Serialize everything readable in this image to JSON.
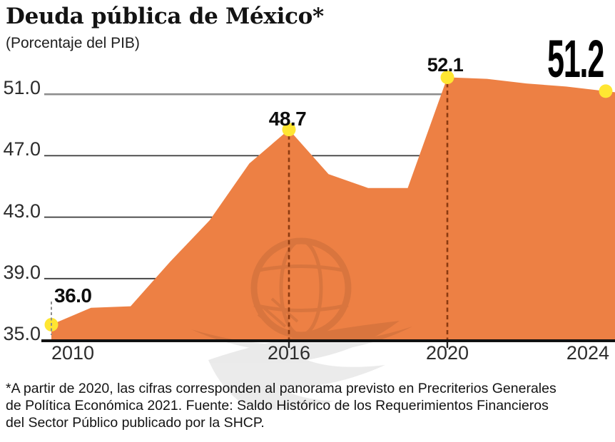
{
  "header": {
    "title": "Deuda pública de México*",
    "subtitle": "(Porcentaje del PIB)"
  },
  "chart_data": {
    "type": "area",
    "title": "Deuda pública de México*",
    "subtitle": "(Porcentaje del PIB)",
    "x": [
      2010,
      2011,
      2012,
      2013,
      2014,
      2015,
      2016,
      2017,
      2018,
      2019,
      2020,
      2021,
      2022,
      2023,
      2024
    ],
    "values": [
      36.0,
      37.1,
      37.2,
      40.1,
      42.8,
      46.5,
      48.7,
      45.8,
      44.9,
      44.9,
      52.1,
      52.0,
      51.7,
      51.5,
      51.2
    ],
    "ylim": [
      35,
      53
    ],
    "grid": true,
    "y_ticks": [
      "51.0",
      "47.0",
      "43.0",
      "39.0",
      "35.0"
    ],
    "x_ticks": [
      "2010",
      "2016",
      "2020",
      "2024"
    ],
    "annotations": [
      {
        "year": 2010,
        "value": 36.0,
        "label": "36.0",
        "guide": "gray"
      },
      {
        "year": 2016,
        "value": 48.7,
        "label": "48.7",
        "guide": "dashed"
      },
      {
        "year": 2020,
        "value": 52.1,
        "label": "52.1",
        "guide": "dashed"
      },
      {
        "year": 2024,
        "value": 51.2,
        "label": "51.2",
        "guide": "none",
        "emphasis": "large"
      }
    ],
    "colors": {
      "area": "#ED8044",
      "marker": "#FFE632",
      "guide_dashed": "#8C3A10",
      "guide_gray": "#8F8F8F",
      "grid_top": "#8E8E8E",
      "grid": "#3A3A3A",
      "axis": "#111111"
    }
  },
  "footnote": "*A partir de 2020, las cifras corresponden al panorama previsto en Precriterios Generales\nde Política Económica 2021. Fuente: Saldo Histórico de los Requerimientos Financieros\ndel Sector Público publicado por la SHCP."
}
